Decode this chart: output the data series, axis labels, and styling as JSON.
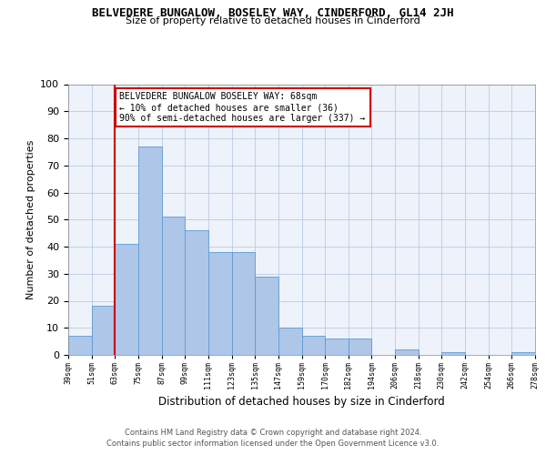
{
  "title": "BELVEDERE BUNGALOW, BOSELEY WAY, CINDERFORD, GL14 2JH",
  "subtitle": "Size of property relative to detached houses in Cinderford",
  "xlabel": "Distribution of detached houses by size in Cinderford",
  "ylabel": "Number of detached properties",
  "bar_values": [
    7,
    18,
    41,
    77,
    51,
    46,
    38,
    38,
    29,
    10,
    7,
    6,
    6,
    0,
    2,
    0,
    1,
    0,
    0,
    1
  ],
  "bar_labels": [
    "39sqm",
    "51sqm",
    "63sqm",
    "75sqm",
    "87sqm",
    "99sqm",
    "111sqm",
    "123sqm",
    "135sqm",
    "147sqm",
    "159sqm",
    "170sqm",
    "182sqm",
    "194sqm",
    "206sqm",
    "218sqm",
    "230sqm",
    "242sqm",
    "254sqm",
    "266sqm",
    "278sqm"
  ],
  "bar_color": "#aec6e8",
  "bar_edge_color": "#5b9bd5",
  "subject_line_color": "#cc0000",
  "annotation_text": "BELVEDERE BUNGALOW BOSELEY WAY: 68sqm\n← 10% of detached houses are smaller (36)\n90% of semi-detached houses are larger (337) →",
  "annotation_box_edge": "#cc0000",
  "ylim": [
    0,
    100
  ],
  "yticks": [
    0,
    10,
    20,
    30,
    40,
    50,
    60,
    70,
    80,
    90,
    100
  ],
  "grid_color": "#b0c4de",
  "background_color": "#eef2fa",
  "footer_line1": "Contains HM Land Registry data © Crown copyright and database right 2024.",
  "footer_line2": "Contains public sector information licensed under the Open Government Licence v3.0."
}
